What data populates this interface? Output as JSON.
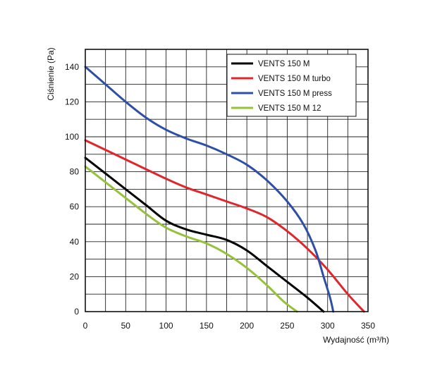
{
  "chart_data": {
    "type": "line",
    "title": "",
    "xlabel": "Wydajność (m³/h)",
    "ylabel": "Ciśnienie (Pa)",
    "xlim": [
      0,
      350
    ],
    "ylim": [
      0,
      150
    ],
    "grid": true,
    "legend_position": "top-right",
    "x_ticks": [
      0,
      50,
      100,
      150,
      200,
      250,
      300,
      350
    ],
    "y_ticks": [
      0,
      20,
      40,
      60,
      80,
      100,
      120,
      140
    ],
    "series": [
      {
        "name": "VENTS 150 M",
        "color": "#000000",
        "points": [
          [
            0,
            88
          ],
          [
            25,
            79
          ],
          [
            50,
            70
          ],
          [
            75,
            61
          ],
          [
            100,
            52
          ],
          [
            125,
            47
          ],
          [
            150,
            44
          ],
          [
            175,
            41
          ],
          [
            200,
            35
          ],
          [
            225,
            26
          ],
          [
            250,
            17
          ],
          [
            275,
            8
          ],
          [
            295,
            0
          ]
        ]
      },
      {
        "name": "VENTS 150 M turbo",
        "color": "#e0262a",
        "points": [
          [
            0,
            98
          ],
          [
            50,
            87
          ],
          [
            100,
            76
          ],
          [
            125,
            71
          ],
          [
            150,
            67
          ],
          [
            175,
            63
          ],
          [
            200,
            59
          ],
          [
            225,
            54
          ],
          [
            250,
            46
          ],
          [
            275,
            36
          ],
          [
            300,
            24
          ],
          [
            325,
            10
          ],
          [
            345,
            0
          ]
        ]
      },
      {
        "name": "VENTS 150 M press",
        "color": "#2e4fa8",
        "points": [
          [
            0,
            140
          ],
          [
            25,
            130
          ],
          [
            50,
            120
          ],
          [
            75,
            111
          ],
          [
            100,
            104
          ],
          [
            125,
            99
          ],
          [
            150,
            95
          ],
          [
            175,
            90
          ],
          [
            200,
            84
          ],
          [
            225,
            75
          ],
          [
            250,
            63
          ],
          [
            270,
            50
          ],
          [
            285,
            35
          ],
          [
            295,
            20
          ],
          [
            303,
            8
          ],
          [
            307,
            0
          ]
        ]
      },
      {
        "name": "VENTS 150 M  12",
        "color": "#95c23a",
        "points": [
          [
            0,
            83
          ],
          [
            25,
            74
          ],
          [
            50,
            65
          ],
          [
            75,
            56
          ],
          [
            100,
            48
          ],
          [
            125,
            43
          ],
          [
            150,
            39
          ],
          [
            175,
            33
          ],
          [
            200,
            25
          ],
          [
            225,
            15
          ],
          [
            245,
            6
          ],
          [
            262,
            0
          ]
        ]
      }
    ]
  }
}
